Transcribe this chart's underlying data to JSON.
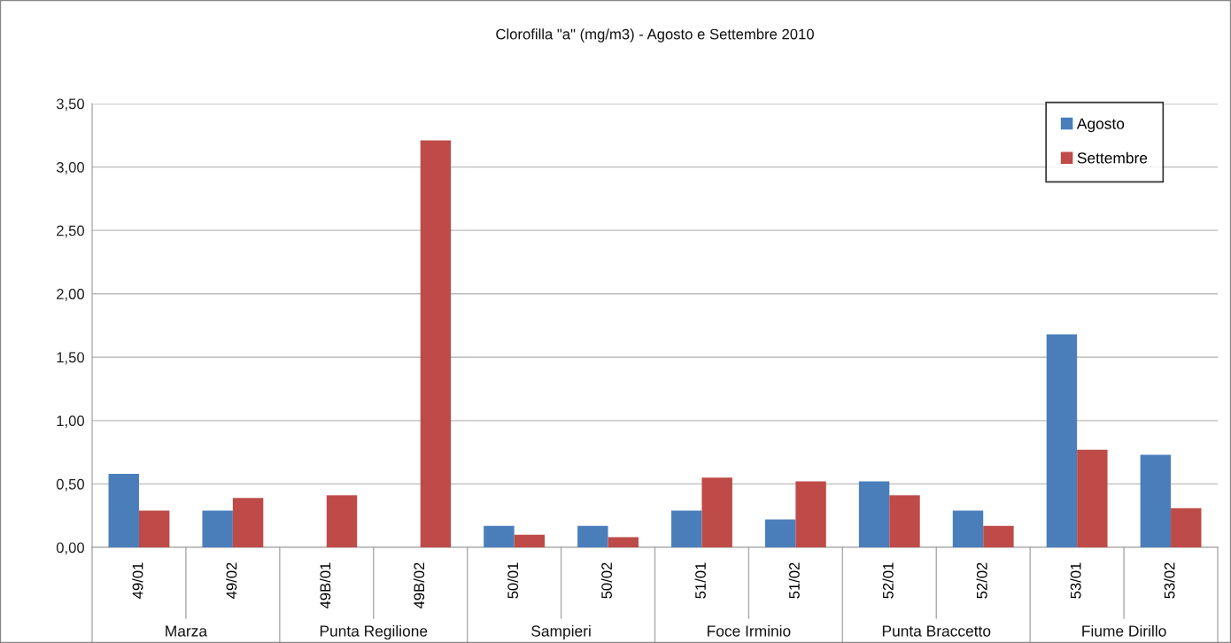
{
  "chart_data": {
    "type": "bar",
    "title": "Clorofilla \"a\" (mg/m3) - Agosto e Settembre 2010",
    "categories": [
      "49/01",
      "49/02",
      "49B/01",
      "49B/02",
      "50/01",
      "50/02",
      "51/01",
      "51/02",
      "52/01",
      "52/02",
      "53/01",
      "53/02"
    ],
    "series": [
      {
        "name": "Agosto",
        "color": "#4a7ebb",
        "values": [
          0.58,
          0.29,
          null,
          null,
          0.17,
          0.17,
          0.29,
          0.22,
          0.52,
          0.29,
          1.68,
          0.73
        ]
      },
      {
        "name": "Settembre",
        "color": "#be4b48",
        "values": [
          0.29,
          0.39,
          0.41,
          3.21,
          0.1,
          0.08,
          0.55,
          0.52,
          0.41,
          0.17,
          0.77,
          0.31
        ]
      }
    ],
    "annotations": [
      "Marza",
      "Punta Regilione",
      "Sampieri",
      "Foce Irminio",
      "Punta Braccetto",
      "Fiume Dirillo"
    ],
    "ylim": [
      0,
      3.5
    ],
    "yticks": [
      {
        "value": 0,
        "label": "0,00"
      },
      {
        "value": 0.5,
        "label": "0,50"
      },
      {
        "value": 1,
        "label": "1,00"
      },
      {
        "value": 1.5,
        "label": "1,50"
      },
      {
        "value": 2,
        "label": "2,00"
      },
      {
        "value": 2.5,
        "label": "2,50"
      },
      {
        "value": 3,
        "label": "3,00"
      },
      {
        "value": 3.5,
        "label": "3,50"
      }
    ],
    "grid": "y",
    "legend": "top right"
  }
}
